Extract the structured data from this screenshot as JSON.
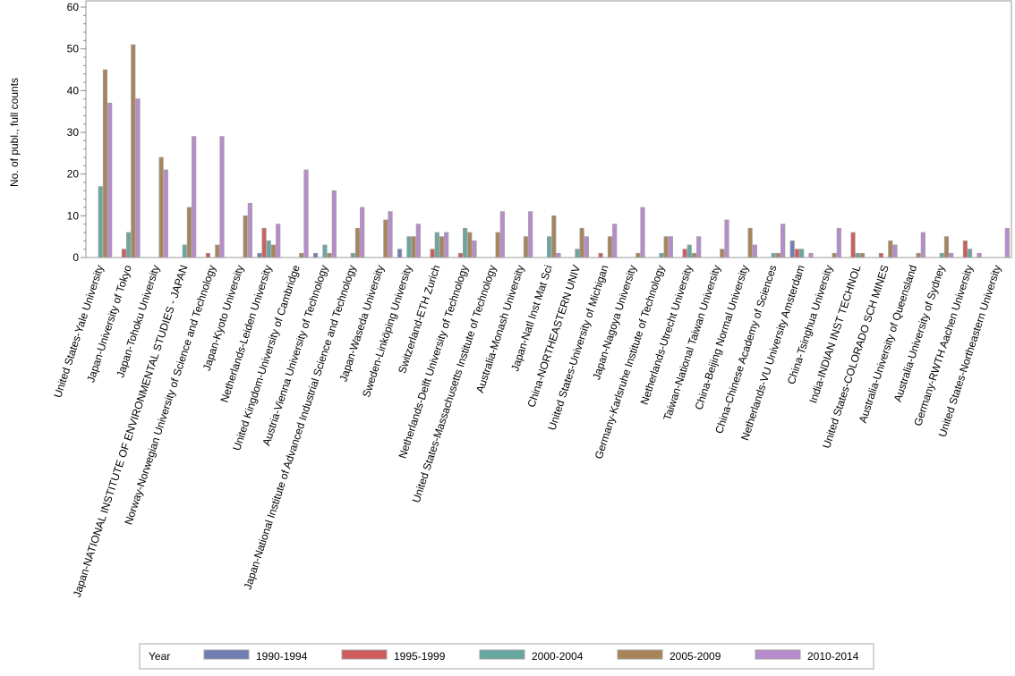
{
  "chart_data": {
    "type": "bar",
    "title": "",
    "xlabel": "",
    "ylabel": "No. of publ., full counts",
    "ylim": [
      0,
      60
    ],
    "yticks": [
      0,
      10,
      20,
      30,
      40,
      50,
      60
    ],
    "legend_title": "Year",
    "legend_position": "bottom",
    "categories": [
      "United States-Yale University",
      "Japan-University of Tokyo",
      "Japan-Tohoku University",
      "Japan-NATIONAL INSTITUTE OF ENVIRONMENTAL STUDIES - JAPAN",
      "Norway-Norwegian University of Science and Technology",
      "Japan-Kyoto University",
      "Netherlands-Leiden University",
      "United Kingdom-University of Cambridge",
      "Austria-Vienna University of Technology",
      "Japan-National Institute of Advanced Industrial Science and Technology",
      "Japan-Waseda University",
      "Sweden-Linköping University",
      "Switzerland-ETH Zurich",
      "Netherlands-Delft University of Technology",
      "United States-Massachusetts Institute of Technology",
      "Australia-Monash University",
      "Japan-Natl Inst Mat Sci",
      "China-NORTHEASTERN UNIV",
      "United States-University of Michigan",
      "Japan-Nagoya University",
      "Germany-Karlsruhe Institute of Technology",
      "Netherlands-Utrecht University",
      "Taiwan-National Taiwan University",
      "China-Beijing Normal University",
      "China-Chinese Academy of Sciences",
      "Netherlands-VU University Amsterdam",
      "China-Tsinghua University",
      "India-INDIAN INST TECHNOL",
      "United States-COLORADO SCH MINES",
      "Australia-University of Queensland",
      "Australia-University of Sydney",
      "Germany-RWTH Aachen University",
      "United States-Northeastern University"
    ],
    "series": [
      {
        "name": "1990-1994",
        "color": "#6f7eb3",
        "values": [
          0,
          0,
          0,
          0,
          0,
          0,
          1,
          0,
          1,
          0,
          0,
          2,
          0,
          0,
          0,
          0,
          0,
          0,
          0,
          0,
          0,
          0,
          0,
          0,
          0,
          4,
          0,
          0,
          0,
          0,
          0,
          0,
          0
        ]
      },
      {
        "name": "1995-1999",
        "color": "#d05b5b",
        "values": [
          0,
          2,
          0,
          0,
          1,
          0,
          7,
          0,
          0,
          0,
          0,
          0,
          2,
          1,
          0,
          0,
          0,
          0,
          1,
          0,
          0,
          2,
          0,
          0,
          0,
          2,
          0,
          6,
          1,
          0,
          0,
          4,
          0
        ]
      },
      {
        "name": "2000-2004",
        "color": "#66a8a0",
        "values": [
          17,
          6,
          0,
          3,
          0,
          0,
          4,
          0,
          3,
          1,
          0,
          5,
          6,
          7,
          0,
          0,
          5,
          2,
          0,
          0,
          1,
          3,
          0,
          0,
          1,
          2,
          0,
          1,
          0,
          0,
          1,
          2,
          0
        ]
      },
      {
        "name": "2005-2009",
        "color": "#a9845a",
        "values": [
          45,
          51,
          24,
          12,
          3,
          10,
          3,
          1,
          1,
          7,
          9,
          5,
          5,
          6,
          6,
          5,
          10,
          7,
          5,
          1,
          5,
          1,
          2,
          7,
          1,
          0,
          1,
          1,
          4,
          1,
          5,
          0,
          0
        ]
      },
      {
        "name": "2010-2014",
        "color": "#b88bcc",
        "values": [
          37,
          38,
          21,
          29,
          29,
          13,
          8,
          21,
          16,
          12,
          11,
          8,
          6,
          4,
          11,
          11,
          1,
          5,
          8,
          12,
          5,
          5,
          9,
          3,
          8,
          1,
          7,
          0,
          3,
          6,
          1,
          1,
          7
        ]
      }
    ]
  }
}
